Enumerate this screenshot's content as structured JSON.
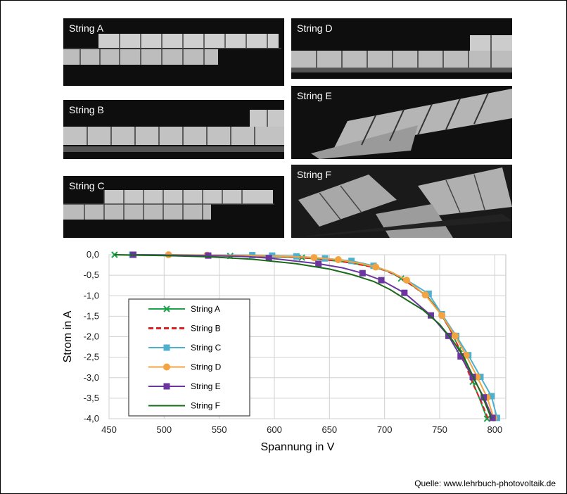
{
  "photos": [
    {
      "label": "String A"
    },
    {
      "label": "String B"
    },
    {
      "label": "String C"
    },
    {
      "label": "String D"
    },
    {
      "label": "String E"
    },
    {
      "label": "String F"
    }
  ],
  "source": "Quelle: www.lehrbuch-photovoltaik.de",
  "chart_data": {
    "type": "line",
    "xlabel": "Spannung in V",
    "ylabel": "Strom in A",
    "xlim": [
      450,
      810
    ],
    "ylim": [
      -4.0,
      0.0
    ],
    "x_ticks": [
      "450",
      "500",
      "550",
      "600",
      "650",
      "700",
      "750",
      "800"
    ],
    "y_ticks": [
      "0,0",
      "-0,5",
      "-1,0",
      "-1,5",
      "-2,0",
      "-2,5",
      "-3,0",
      "-3,5",
      "-4,0"
    ],
    "grid": true,
    "legend_position": "left-center",
    "series": [
      {
        "name": "String A",
        "color": "#1aa34a",
        "marker": "x",
        "dash": false,
        "points": [
          [
            455,
            0
          ],
          [
            475,
            -0.01
          ],
          [
            520,
            -0.02
          ],
          [
            560,
            -0.03
          ],
          [
            600,
            -0.05
          ],
          [
            625,
            -0.07
          ],
          [
            650,
            -0.13
          ],
          [
            670,
            -0.2
          ],
          [
            690,
            -0.3
          ],
          [
            705,
            -0.42
          ],
          [
            715,
            -0.58
          ],
          [
            728,
            -0.8
          ],
          [
            740,
            -1.05
          ],
          [
            750,
            -1.4
          ],
          [
            760,
            -1.85
          ],
          [
            768,
            -2.3
          ],
          [
            775,
            -2.75
          ],
          [
            780,
            -3.1
          ],
          [
            786,
            -3.5
          ],
          [
            793,
            -4.0
          ]
        ],
        "marked": [
          0,
          3,
          5,
          10,
          15,
          17,
          19
        ]
      },
      {
        "name": "String B",
        "color": "#e02020",
        "marker": "none",
        "dash": true,
        "points": [
          [
            473,
            0
          ],
          [
            540,
            -0.02
          ],
          [
            580,
            -0.03
          ],
          [
            610,
            -0.05
          ],
          [
            640,
            -0.1
          ],
          [
            665,
            -0.18
          ],
          [
            685,
            -0.28
          ],
          [
            700,
            -0.38
          ],
          [
            712,
            -0.52
          ],
          [
            725,
            -0.75
          ],
          [
            738,
            -1.0
          ],
          [
            750,
            -1.4
          ],
          [
            760,
            -1.85
          ],
          [
            768,
            -2.3
          ],
          [
            775,
            -2.8
          ],
          [
            781,
            -3.2
          ],
          [
            788,
            -3.6
          ],
          [
            794,
            -4.0
          ]
        ],
        "marked": []
      },
      {
        "name": "String C",
        "color": "#4db0cf",
        "marker": "square",
        "dash": false,
        "points": [
          [
            471,
            0
          ],
          [
            580,
            -0.01
          ],
          [
            598,
            -0.02
          ],
          [
            620,
            -0.04
          ],
          [
            646,
            -0.09
          ],
          [
            670,
            -0.15
          ],
          [
            690,
            -0.27
          ],
          [
            708,
            -0.45
          ],
          [
            725,
            -0.7
          ],
          [
            740,
            -0.95
          ],
          [
            752,
            -1.45
          ],
          [
            765,
            -1.98
          ],
          [
            776,
            -2.45
          ],
          [
            787,
            -2.98
          ],
          [
            797,
            -3.45
          ],
          [
            802,
            -3.98
          ]
        ],
        "marked": [
          0,
          1,
          2,
          3,
          4,
          5,
          6,
          9,
          10,
          11,
          12,
          13,
          14,
          15
        ]
      },
      {
        "name": "String D",
        "color": "#f3a340",
        "marker": "circle",
        "dash": false,
        "points": [
          [
            504,
            0
          ],
          [
            539,
            -0.01
          ],
          [
            580,
            -0.02
          ],
          [
            610,
            -0.04
          ],
          [
            636,
            -0.07
          ],
          [
            658,
            -0.12
          ],
          [
            676,
            -0.2
          ],
          [
            692,
            -0.3
          ],
          [
            706,
            -0.42
          ],
          [
            720,
            -0.62
          ],
          [
            737,
            -0.98
          ],
          [
            752,
            -1.48
          ],
          [
            764,
            -1.98
          ],
          [
            774,
            -2.45
          ],
          [
            784,
            -2.98
          ],
          [
            793,
            -3.48
          ],
          [
            799,
            -3.98
          ]
        ],
        "marked": [
          0,
          1,
          4,
          5,
          7,
          9,
          10,
          11,
          12,
          13,
          14,
          15,
          16
        ]
      },
      {
        "name": "String E",
        "color": "#6b36a0",
        "marker": "square",
        "dash": false,
        "points": [
          [
            472,
            0
          ],
          [
            540,
            -0.02
          ],
          [
            570,
            -0.04
          ],
          [
            595,
            -0.08
          ],
          [
            615,
            -0.14
          ],
          [
            640,
            -0.22
          ],
          [
            662,
            -0.32
          ],
          [
            680,
            -0.45
          ],
          [
            697,
            -0.62
          ],
          [
            718,
            -0.93
          ],
          [
            742,
            -1.48
          ],
          [
            758,
            -1.98
          ],
          [
            769,
            -2.48
          ],
          [
            780,
            -2.98
          ],
          [
            790,
            -3.48
          ],
          [
            798,
            -3.98
          ]
        ],
        "marked": [
          0,
          1,
          3,
          5,
          7,
          8,
          9,
          10,
          11,
          12,
          13,
          14,
          15
        ]
      },
      {
        "name": "String F",
        "color": "#1b6a1b",
        "marker": "none",
        "dash": false,
        "points": [
          [
            455,
            0
          ],
          [
            500,
            -0.02
          ],
          [
            540,
            -0.05
          ],
          [
            580,
            -0.11
          ],
          [
            620,
            -0.22
          ],
          [
            650,
            -0.35
          ],
          [
            670,
            -0.48
          ],
          [
            690,
            -0.65
          ],
          [
            705,
            -0.85
          ],
          [
            720,
            -1.1
          ],
          [
            735,
            -1.35
          ],
          [
            750,
            -1.7
          ],
          [
            762,
            -2.1
          ],
          [
            772,
            -2.5
          ],
          [
            780,
            -2.95
          ],
          [
            788,
            -3.4
          ],
          [
            794,
            -3.8
          ],
          [
            797,
            -4.0
          ]
        ],
        "marked": []
      }
    ]
  }
}
